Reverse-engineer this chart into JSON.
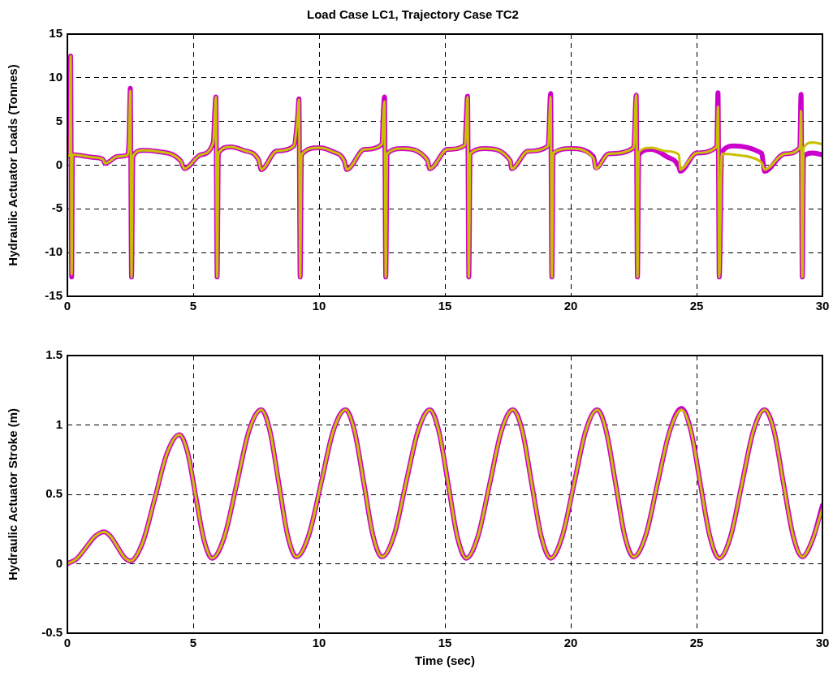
{
  "chart_data": [
    {
      "type": "line",
      "title": "Load Case LC1, Trajectory Case TC2",
      "ylabel": "Hydraulic Actuator Loads (Tonnes)",
      "xlim": [
        0,
        30
      ],
      "ylim": [
        -15,
        15
      ],
      "xticks": [
        0,
        5,
        10,
        15,
        20,
        25,
        30
      ],
      "yticks": [
        -15,
        -10,
        -5,
        0,
        5,
        10,
        15
      ],
      "grid": true,
      "legend": false,
      "marker": "none",
      "line_style": "solid",
      "series": [
        {
          "color": "#cc00cc",
          "x": [
            0,
            0.1,
            0.13,
            0.17,
            0.2,
            1.0,
            1.4,
            1.5,
            2.0,
            2.4,
            2.45,
            2.5,
            2.55,
            2.6,
            3.0,
            3.5,
            4.5,
            4.65,
            5.3,
            5.8,
            5.85,
            5.9,
            5.95,
            6.0,
            6.5,
            7.0,
            7.6,
            7.7,
            8.3,
            9.0,
            9.15,
            9.2,
            9.25,
            9.3,
            10.0,
            10.5,
            11.0,
            11.1,
            11.8,
            12.5,
            12.55,
            12.6,
            12.65,
            12.7,
            13.3,
            14.3,
            14.4,
            15.1,
            15.8,
            15.85,
            15.9,
            15.95,
            16.0,
            16.6,
            17.6,
            17.65,
            18.3,
            19.1,
            19.2,
            19.25,
            19.3,
            20.0,
            20.9,
            21.0,
            21.5,
            22.5,
            22.6,
            22.65,
            22.7,
            23.2,
            23.8,
            24.3,
            24.35,
            25.0,
            25.8,
            25.85,
            25.9,
            26.0,
            26.5,
            27.5,
            27.6,
            27.7,
            28.5,
            29.1,
            29.15,
            29.2,
            29.25,
            29.6,
            30
          ],
          "values": [
            1.0,
            1.2,
            12.5,
            -12.8,
            1.2,
            0.9,
            0.7,
            0.2,
            1.0,
            1.2,
            3.0,
            8.8,
            -12.8,
            1.0,
            1.7,
            1.6,
            0.5,
            -0.4,
            1.2,
            2.6,
            5.8,
            7.8,
            -12.8,
            1.4,
            2.1,
            1.7,
            0.6,
            -0.5,
            1.6,
            2.2,
            5.5,
            7.6,
            -12.8,
            1.2,
            2.0,
            1.6,
            0.5,
            -0.5,
            1.8,
            2.4,
            5.8,
            7.8,
            -12.8,
            1.3,
            1.9,
            0.6,
            -0.4,
            1.8,
            2.3,
            5.5,
            7.9,
            -12.8,
            1.3,
            1.9,
            0.5,
            -0.4,
            1.6,
            2.2,
            8.2,
            -12.8,
            1.3,
            1.9,
            1.0,
            -0.3,
            1.3,
            2.0,
            8.0,
            -12.8,
            1.2,
            1.8,
            1.0,
            -0.2,
            -0.7,
            1.4,
            2.1,
            8.3,
            -12.8,
            1.5,
            2.2,
            1.5,
            1.2,
            -0.7,
            1.3,
            2.0,
            8.1,
            -12.8,
            1.0,
            1.4,
            1.2
          ]
        },
        {
          "color": "#c8c000",
          "x": [
            0,
            0.1,
            0.13,
            0.17,
            0.2,
            1.0,
            1.4,
            1.5,
            2.0,
            2.4,
            2.45,
            2.5,
            2.55,
            2.6,
            3.0,
            3.5,
            4.5,
            4.65,
            5.3,
            5.8,
            5.85,
            5.9,
            5.95,
            6.0,
            6.5,
            7.0,
            7.6,
            7.7,
            8.3,
            9.0,
            9.15,
            9.2,
            9.25,
            9.3,
            10.0,
            10.5,
            11.0,
            11.1,
            11.8,
            12.5,
            12.55,
            12.6,
            12.65,
            12.7,
            13.3,
            14.3,
            14.4,
            15.1,
            15.8,
            15.85,
            15.9,
            15.95,
            16.0,
            16.6,
            17.6,
            17.65,
            18.3,
            19.1,
            19.2,
            19.25,
            19.3,
            20.0,
            20.9,
            21.0,
            21.5,
            22.5,
            22.6,
            22.65,
            22.7,
            23.2,
            23.8,
            24.3,
            24.35,
            25.0,
            25.8,
            25.85,
            25.9,
            26.0,
            26.5,
            27.5,
            27.6,
            27.7,
            28.5,
            29.1,
            29.15,
            29.2,
            29.25,
            29.6,
            30
          ],
          "values": [
            1.0,
            1.2,
            12.5,
            -12.5,
            1.2,
            0.9,
            0.7,
            0.2,
            1.0,
            1.2,
            3.0,
            8.5,
            -12.8,
            1.0,
            1.7,
            1.6,
            0.5,
            -0.4,
            1.2,
            2.6,
            5.5,
            7.8,
            -12.8,
            1.4,
            2.1,
            1.7,
            0.6,
            -0.5,
            1.6,
            2.2,
            5.5,
            7.5,
            -12.8,
            1.2,
            2.0,
            1.6,
            0.5,
            -0.5,
            1.8,
            2.4,
            5.5,
            7.3,
            -12.8,
            1.3,
            1.9,
            0.6,
            -0.4,
            1.8,
            2.3,
            5.0,
            7.8,
            -12.8,
            1.3,
            1.9,
            0.5,
            -0.4,
            1.6,
            2.2,
            7.8,
            -12.8,
            1.4,
            1.9,
            0.8,
            -0.4,
            1.3,
            2.0,
            8.0,
            -12.8,
            1.5,
            2.0,
            1.6,
            1.2,
            -0.5,
            1.4,
            2.1,
            6.7,
            -12.8,
            1.3,
            1.2,
            0.5,
            0.2,
            -0.5,
            1.3,
            2.0,
            6.2,
            -12.8,
            2.0,
            2.6,
            2.4
          ]
        }
      ]
    },
    {
      "type": "line",
      "xlabel": "Time (sec)",
      "ylabel": "Hydraulic Actuator Stroke (m)",
      "xlim": [
        0,
        30
      ],
      "ylim": [
        -0.5,
        1.5
      ],
      "xticks": [
        0,
        5,
        10,
        15,
        20,
        25,
        30
      ],
      "yticks": [
        -0.5,
        0,
        0.5,
        1,
        1.5
      ],
      "grid": true,
      "legend": false,
      "marker": "none",
      "line_style": "solid",
      "series": [
        {
          "color": "#cc00cc",
          "x": [
            0,
            0.36,
            0.73,
            1.09,
            1.45,
            1.71,
            1.98,
            2.24,
            2.5,
            2.99,
            3.48,
            3.96,
            4.45,
            4.78,
            5.1,
            5.43,
            5.75,
            6.24,
            6.73,
            7.21,
            7.7,
            8.05,
            8.4,
            8.75,
            9.1,
            9.59,
            10.08,
            10.56,
            11.05,
            11.41,
            11.78,
            12.14,
            12.5,
            12.98,
            13.45,
            13.93,
            14.4,
            14.76,
            15.13,
            15.49,
            15.85,
            16.31,
            16.78,
            17.24,
            17.7,
            18.08,
            18.45,
            18.83,
            19.2,
            19.66,
            20.13,
            20.59,
            21.05,
            21.41,
            21.78,
            22.14,
            22.5,
            22.98,
            23.45,
            23.93,
            24.4,
            24.78,
            25.15,
            25.53,
            25.9,
            26.35,
            26.8,
            27.25,
            27.7,
            28.08,
            28.45,
            28.83,
            29.2,
            29.6,
            30
          ],
          "values": [
            0,
            0.034,
            0.115,
            0.196,
            0.23,
            0.199,
            0.125,
            0.051,
            0.02,
            0.153,
            0.475,
            0.797,
            0.93,
            0.8,
            0.485,
            0.17,
            0.04,
            0.196,
            0.575,
            0.954,
            1.11,
            0.955,
            0.58,
            0.205,
            0.05,
            0.205,
            0.58,
            0.955,
            1.11,
            0.955,
            0.58,
            0.205,
            0.05,
            0.205,
            0.58,
            0.955,
            1.11,
            0.954,
            0.575,
            0.196,
            0.04,
            0.196,
            0.575,
            0.954,
            1.11,
            0.954,
            0.575,
            0.196,
            0.04,
            0.196,
            0.575,
            0.954,
            1.11,
            0.955,
            0.58,
            0.205,
            0.05,
            0.205,
            0.58,
            0.955,
            1.12,
            0.954,
            0.575,
            0.196,
            0.04,
            0.196,
            0.575,
            0.954,
            1.11,
            0.955,
            0.58,
            0.205,
            0.05,
            0.17,
            0.42
          ]
        },
        {
          "color": "#c8c000",
          "x": [
            0,
            0.36,
            0.73,
            1.09,
            1.45,
            1.71,
            1.98,
            2.24,
            2.5,
            2.99,
            3.48,
            3.96,
            4.45,
            4.78,
            5.1,
            5.43,
            5.75,
            6.24,
            6.73,
            7.21,
            7.7,
            8.05,
            8.4,
            8.75,
            9.1,
            9.59,
            10.08,
            10.56,
            11.05,
            11.41,
            11.78,
            12.14,
            12.5,
            12.98,
            13.45,
            13.93,
            14.4,
            14.76,
            15.13,
            15.49,
            15.85,
            16.31,
            16.78,
            17.24,
            17.7,
            18.08,
            18.45,
            18.83,
            19.2,
            19.66,
            20.13,
            20.59,
            21.05,
            21.41,
            21.78,
            22.14,
            22.5,
            22.98,
            23.45,
            23.93,
            24.4,
            24.78,
            25.15,
            25.53,
            25.9,
            26.35,
            26.8,
            27.25,
            27.7,
            28.08,
            28.45,
            28.83,
            29.2,
            29.6,
            30
          ],
          "values": [
            0,
            0.034,
            0.115,
            0.196,
            0.23,
            0.199,
            0.125,
            0.051,
            0.02,
            0.153,
            0.475,
            0.797,
            0.93,
            0.8,
            0.485,
            0.17,
            0.04,
            0.196,
            0.575,
            0.954,
            1.11,
            0.955,
            0.58,
            0.205,
            0.05,
            0.205,
            0.58,
            0.955,
            1.11,
            0.955,
            0.58,
            0.205,
            0.05,
            0.205,
            0.58,
            0.955,
            1.11,
            0.954,
            0.575,
            0.196,
            0.04,
            0.196,
            0.575,
            0.954,
            1.11,
            0.954,
            0.575,
            0.196,
            0.04,
            0.196,
            0.575,
            0.954,
            1.11,
            0.955,
            0.58,
            0.205,
            0.05,
            0.205,
            0.58,
            0.955,
            1.11,
            0.954,
            0.575,
            0.196,
            0.04,
            0.196,
            0.575,
            0.954,
            1.11,
            0.955,
            0.58,
            0.205,
            0.05,
            0.17,
            0.4
          ]
        }
      ]
    }
  ]
}
